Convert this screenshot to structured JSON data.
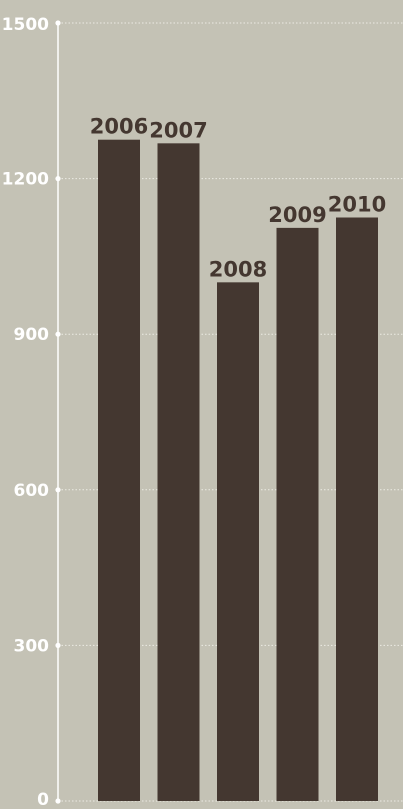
{
  "chart_data": {
    "type": "bar",
    "categories": [
      "2006",
      "2007",
      "2008",
      "2009",
      "2010"
    ],
    "values": [
      1275,
      1268,
      1000,
      1105,
      1125
    ],
    "title": "",
    "xlabel": "",
    "ylabel": "",
    "ylim": [
      0,
      1500
    ],
    "yticks": [
      0,
      300,
      600,
      900,
      1200,
      1500
    ],
    "grid": true,
    "legend": "none",
    "data_labels": "category-above-bar",
    "colors": {
      "background": "#c4c2b5",
      "bar": "#443730",
      "axis": "#ffffff",
      "grid": "#ecebe4",
      "tick_text": "#ffffff",
      "bar_label_text": "#443730"
    }
  }
}
